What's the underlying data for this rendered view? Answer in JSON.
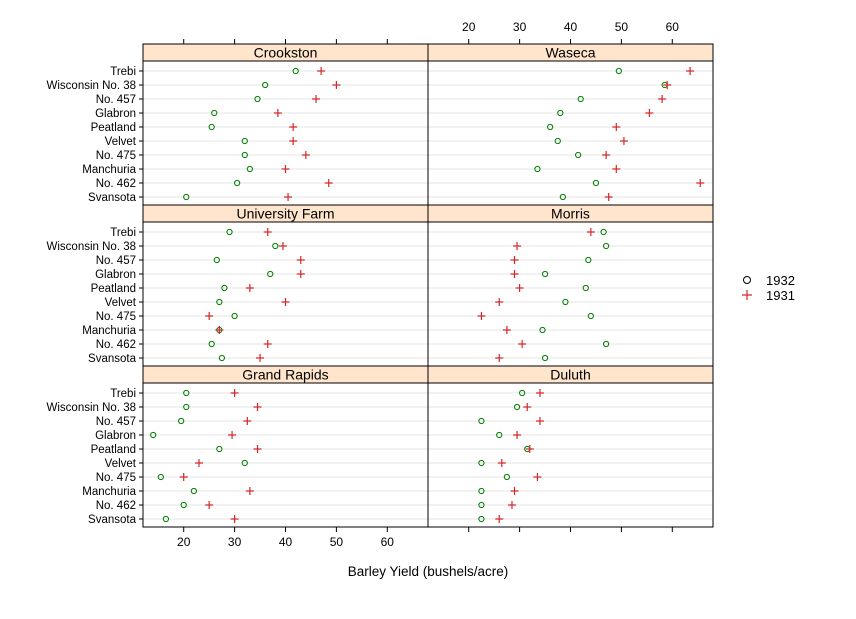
{
  "chart_data": {
    "type": "dotplot",
    "xlabel": "Barley Yield (bushels/acre)",
    "x_ticks": [
      20,
      30,
      40,
      50,
      60
    ],
    "xlim": [
      12,
      68
    ],
    "varieties": [
      "Trebi",
      "Wisconsin No. 38",
      "No. 457",
      "Glabron",
      "Peatland",
      "Velvet",
      "No. 475",
      "Manchuria",
      "No. 462",
      "Svansota"
    ],
    "series": [
      {
        "name": "1932",
        "marker": "circle",
        "color": "#007a00"
      },
      {
        "name": "1931",
        "marker": "plus",
        "color": "#d62728"
      }
    ],
    "panels": [
      {
        "site": "Crookston",
        "values_1932": [
          42.0,
          36.0,
          34.5,
          26.0,
          25.5,
          32.0,
          32.0,
          33.0,
          30.5,
          20.5
        ],
        "values_1931": [
          47.0,
          50.0,
          46.0,
          38.5,
          41.5,
          41.5,
          44.0,
          40.0,
          48.5,
          40.5
        ]
      },
      {
        "site": "Waseca",
        "values_1932": [
          49.5,
          58.5,
          42.0,
          38.0,
          36.0,
          37.5,
          41.5,
          33.5,
          45.0,
          38.5
        ],
        "values_1931": [
          63.5,
          59.0,
          58.0,
          55.5,
          49.0,
          50.5,
          47.0,
          49.0,
          65.5,
          47.5
        ]
      },
      {
        "site": "University Farm",
        "values_1932": [
          29.0,
          38.0,
          26.5,
          37.0,
          28.0,
          27.0,
          30.0,
          27.0,
          25.5,
          27.5
        ],
        "values_1931": [
          36.5,
          39.5,
          43.0,
          43.0,
          33.0,
          40.0,
          25.0,
          27.0,
          36.5,
          35.0
        ]
      },
      {
        "site": "Morris",
        "values_1932": [
          46.5,
          47.0,
          43.5,
          35.0,
          43.0,
          39.0,
          44.0,
          34.5,
          47.0,
          35.0
        ],
        "values_1931": [
          44.0,
          29.5,
          29.0,
          29.0,
          30.0,
          26.0,
          22.5,
          27.5,
          30.5,
          26.0
        ]
      },
      {
        "site": "Grand Rapids",
        "values_1932": [
          20.5,
          20.5,
          19.5,
          14.0,
          27.0,
          32.0,
          15.5,
          22.0,
          20.0,
          16.5
        ],
        "values_1931": [
          30.0,
          34.5,
          32.5,
          29.5,
          34.5,
          23.0,
          20.0,
          33.0,
          25.0,
          30.0
        ]
      },
      {
        "site": "Duluth",
        "values_1932": [
          30.5,
          29.5,
          22.5,
          26.0,
          31.5,
          22.5,
          27.5,
          22.5,
          22.5,
          22.5
        ],
        "values_1931": [
          34.0,
          31.5,
          34.0,
          29.5,
          32.0,
          26.5,
          33.5,
          29.0,
          28.5,
          26.0
        ]
      }
    ]
  }
}
